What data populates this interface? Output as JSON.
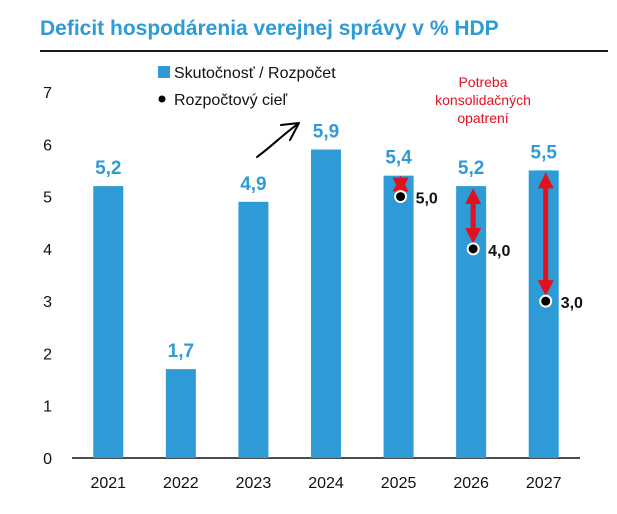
{
  "chart_data": {
    "type": "bar",
    "title": "Deficit hospodárenia verejnej správy v % HDP",
    "categories": [
      "2021",
      "2022",
      "2023",
      "2024",
      "2025",
      "2026",
      "2027"
    ],
    "series": [
      {
        "name": "Skutočnosť / Rozpočet",
        "values": [
          5.2,
          1.7,
          4.9,
          5.9,
          5.4,
          5.2,
          5.5
        ],
        "labels": [
          "5,2",
          "1,7",
          "4,9",
          "5,9",
          "5,4",
          "5,2",
          "5,5"
        ]
      },
      {
        "name": "Rozpočtový cieľ",
        "values": [
          null,
          null,
          null,
          null,
          5.0,
          4.0,
          3.0
        ],
        "labels": [
          "",
          "",
          "",
          "",
          "5,0",
          "4,0",
          "3,0"
        ]
      }
    ],
    "ylim": [
      0,
      7
    ],
    "yticks": [
      "0",
      "1",
      "2",
      "3",
      "4",
      "5",
      "6",
      "7"
    ],
    "xlabel": "",
    "ylabel": "",
    "legend": "top-left",
    "annotation": [
      "Potreba",
      "konsolidačných",
      "opatrení"
    ],
    "colors": {
      "bar": "#2e9bd6",
      "label": "#2e9bd6",
      "arrow": "#e3101e",
      "target": "#000000"
    }
  }
}
